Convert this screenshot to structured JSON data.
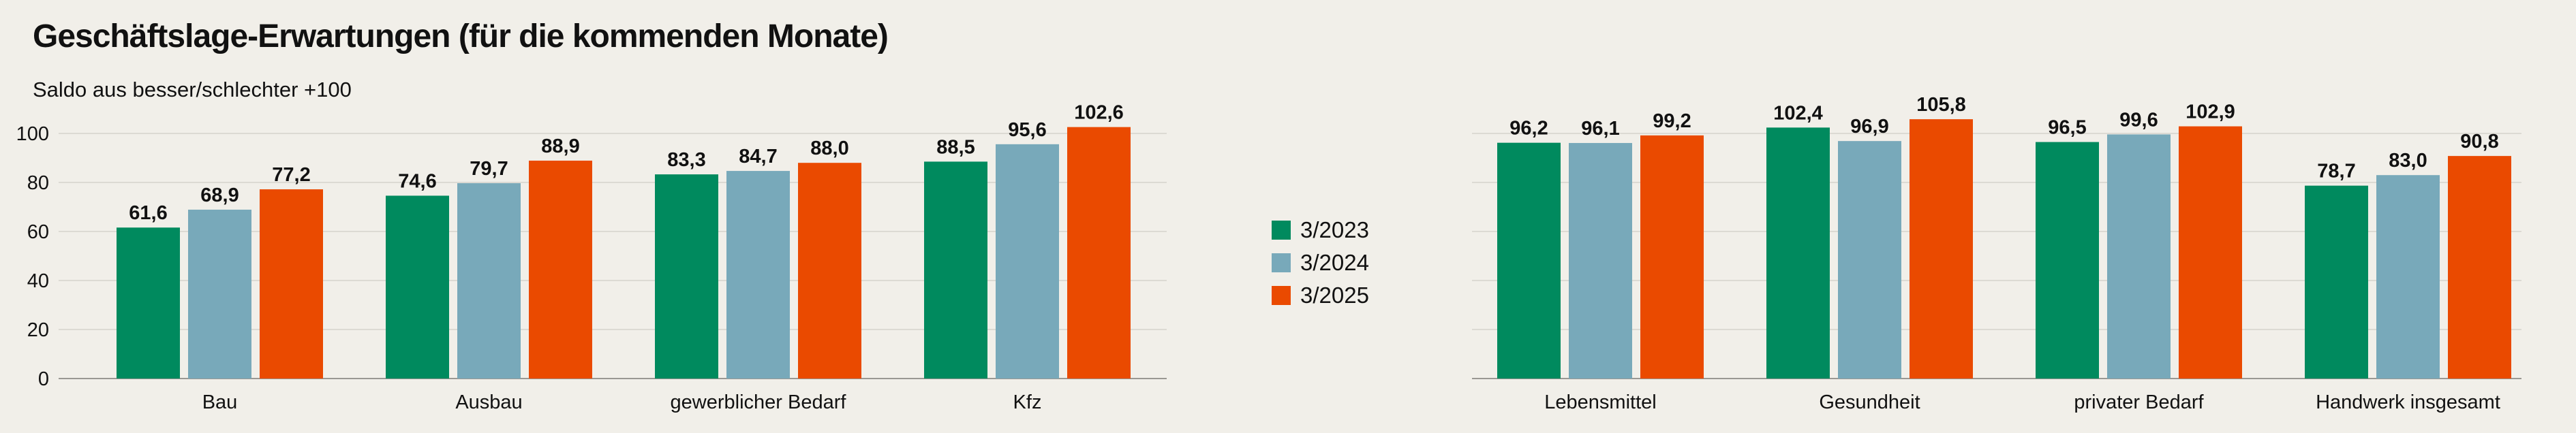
{
  "title": "Geschäftslage-Erwartungen (für die kommenden Monate)",
  "subtitle": "Saldo aus besser/schlechter +100",
  "colors": {
    "3/2023": "#008a5e",
    "3/2024": "#78a9ba",
    "3/2025": "#ea4a00",
    "grid": "#d6d3cc",
    "axis": "#9a9893",
    "background": "#f1efe9"
  },
  "legend": [
    "3/2023",
    "3/2024",
    "3/2025"
  ],
  "chart_data": [
    {
      "type": "bar",
      "title": "",
      "xlabel": "",
      "ylabel": "",
      "ylim": [
        0,
        110
      ],
      "yticks": [
        0,
        20,
        40,
        60,
        80,
        100
      ],
      "grid": true,
      "legend_position": "right",
      "categories": [
        "Bau",
        "Ausbau",
        "gewerblicher Bedarf",
        "Kfz"
      ],
      "series": [
        {
          "name": "3/2023",
          "values": [
            61.6,
            74.6,
            83.3,
            88.5
          ],
          "labels": [
            "61,6",
            "74,6",
            "83,3",
            "88,5"
          ]
        },
        {
          "name": "3/2024",
          "values": [
            68.9,
            79.7,
            84.7,
            95.6
          ],
          "labels": [
            "68,9",
            "79,7",
            "84,7",
            "95,6"
          ]
        },
        {
          "name": "3/2025",
          "values": [
            77.2,
            88.9,
            88.0,
            102.6
          ],
          "labels": [
            "77,2",
            "88,9",
            "88,0",
            "102,6"
          ]
        }
      ]
    },
    {
      "type": "bar",
      "title": "",
      "xlabel": "",
      "ylabel": "",
      "ylim": [
        0,
        110
      ],
      "grid": true,
      "categories": [
        "Lebensmittel",
        "Gesundheit",
        "privater Bedarf",
        "Handwerk insgesamt"
      ],
      "series": [
        {
          "name": "3/2023",
          "values": [
            96.2,
            102.4,
            96.5,
            78.7
          ],
          "labels": [
            "96,2",
            "102,4",
            "96,5",
            "78,7"
          ]
        },
        {
          "name": "3/2024",
          "values": [
            96.1,
            96.9,
            99.6,
            83.0
          ],
          "labels": [
            "96,1",
            "96,9",
            "99,6",
            "83,0"
          ]
        },
        {
          "name": "3/2025",
          "values": [
            99.2,
            105.8,
            102.9,
            90.8
          ],
          "labels": [
            "99,2",
            "105,8",
            "102,9",
            "90,8"
          ]
        }
      ]
    }
  ]
}
